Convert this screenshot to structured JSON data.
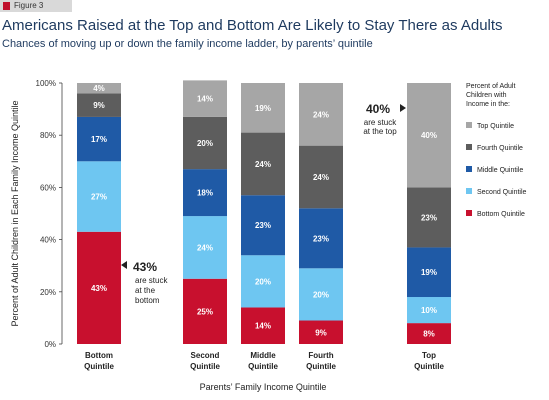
{
  "figure_label": "Figure 3",
  "title": "Americans Raised at the Top and Bottom Are Likely to Stay There as Adults",
  "subtitle": "Chances of moving up or down the family income ladder, by parents’ quintile",
  "chart_data": {
    "type": "bar",
    "stacked": true,
    "categories": [
      "Bottom Quintile",
      "Second Quintile",
      "Middle Quintile",
      "Fourth Quintile",
      "Top Quintile"
    ],
    "category_lines": [
      [
        "Bottom",
        "Quintile"
      ],
      [
        "Second",
        "Quintile"
      ],
      [
        "Middle",
        "Quintile"
      ],
      [
        "Fourth",
        "Quintile"
      ],
      [
        "Top",
        "Quintile"
      ]
    ],
    "series": [
      {
        "name": "Bottom Quintile",
        "color": "#c8102e",
        "values": [
          43,
          25,
          14,
          9,
          8
        ]
      },
      {
        "name": "Second Quintile",
        "color": "#6ec6f1",
        "values": [
          27,
          24,
          20,
          20,
          10
        ]
      },
      {
        "name": "Middle Quintile",
        "color": "#1f5aa6",
        "values": [
          17,
          18,
          23,
          23,
          19
        ]
      },
      {
        "name": "Fourth Quintile",
        "color": "#5d5d5d",
        "values": [
          9,
          20,
          24,
          24,
          23
        ]
      },
      {
        "name": "Top Quintile",
        "color": "#a6a6a6",
        "values": [
          4,
          14,
          19,
          24,
          40
        ]
      }
    ],
    "xlabel": "Parents’ Family Income Quintile",
    "ylabel": "Percent of Adult Children in Each Family Income Quintile",
    "ylim": [
      0,
      100
    ],
    "yticks": [
      "0%",
      "20%",
      "40%",
      "60%",
      "80%",
      "100%"
    ],
    "legend_title": [
      "Percent of Adult",
      "Children with",
      "Income in the:"
    ],
    "legend_placement": "right",
    "annotations": [
      {
        "value": "43%",
        "lines": [
          "are stuck",
          "at the",
          "bottom"
        ]
      },
      {
        "value": "40%",
        "lines": [
          "are stuck",
          "at the top"
        ]
      }
    ]
  }
}
